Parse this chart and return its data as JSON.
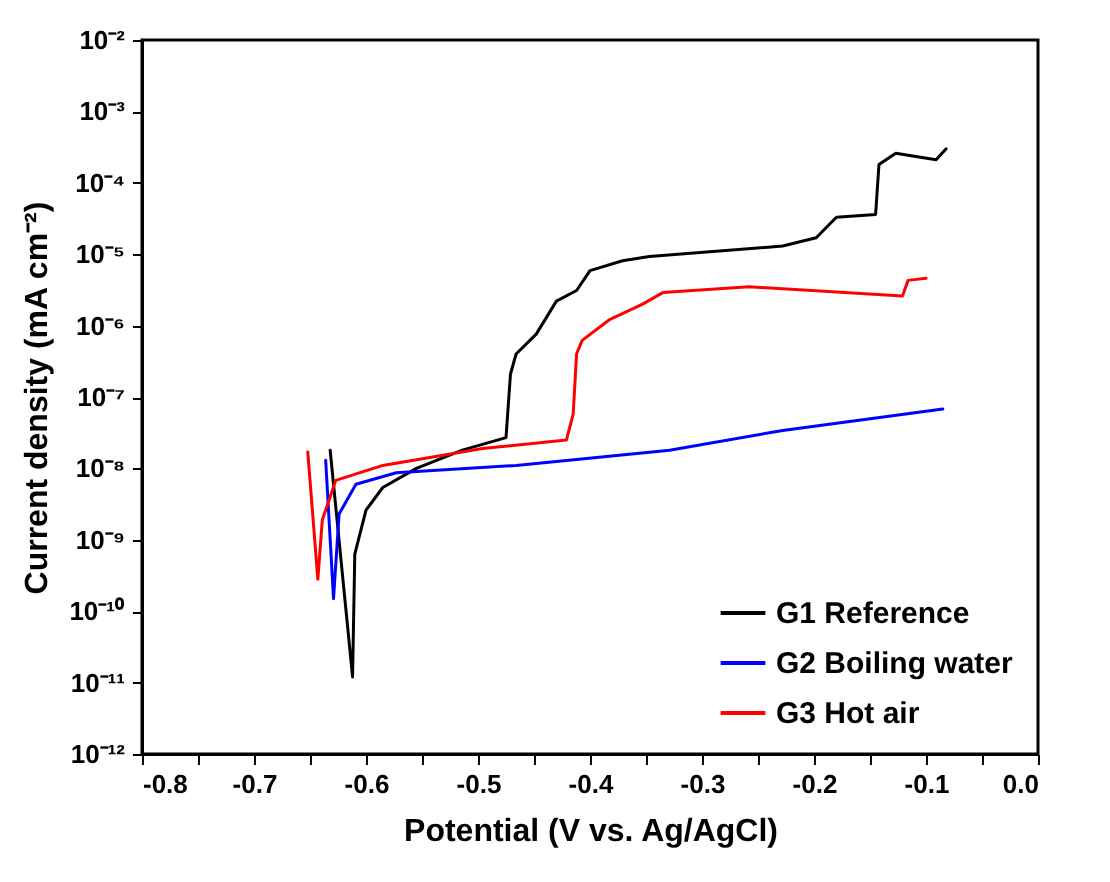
{
  "chart_data": {
    "type": "line",
    "xlabel": "Potential (V vs. Ag/AgCl)",
    "ylabel": "Current density (mA cm⁻²)",
    "log": "y",
    "legend": "bottom right",
    "grid": false,
    "line_style": "solid",
    "marker": "none",
    "xlim": [
      -0.8,
      0.0
    ],
    "xticks": [
      -0.8,
      {
        "value": -0.75,
        "label": null
      },
      -0.7,
      {
        "value": -0.65,
        "label": null
      },
      -0.6,
      {
        "value": -0.55,
        "label": null
      },
      -0.5,
      {
        "value": -0.45,
        "label": null
      },
      -0.4,
      {
        "value": -0.35,
        "label": null
      },
      -0.3,
      {
        "value": -0.25,
        "label": null
      },
      -0.2,
      {
        "value": -0.15,
        "label": null
      },
      -0.1,
      {
        "value": -0.05,
        "label": null
      },
      {
        "value": 0,
        "label": "0.0"
      }
    ],
    "ylim": [
      1e-12,
      0.01
    ],
    "yticks": [
      {
        "value": 1e-12,
        "label": "10⁻¹²"
      },
      {
        "value": 1e-11,
        "label": "10⁻¹¹"
      },
      {
        "value": 1e-10,
        "label": "10⁻¹⁰"
      },
      {
        "value": 1e-09,
        "label": "10⁻⁹"
      },
      {
        "value": 1e-08,
        "label": "10⁻⁸"
      },
      {
        "value": 1e-07,
        "label": "10⁻⁷"
      },
      {
        "value": 1e-06,
        "label": "10⁻⁶"
      },
      {
        "value": 1e-05,
        "label": "10⁻⁵"
      },
      {
        "value": 0.0001,
        "label": "10⁻⁴"
      },
      {
        "value": 0.001,
        "label": "10⁻³"
      },
      {
        "value": 0.01,
        "label": "10⁻²"
      }
    ],
    "series": [
      {
        "name": "G1 Reference",
        "color": "#000000",
        "x": [
          -0.632,
          -0.612,
          -0.61,
          -0.6,
          -0.585,
          -0.555,
          -0.514,
          -0.475,
          -0.471,
          -0.466,
          -0.448,
          -0.43,
          -0.412,
          -0.4,
          -0.371,
          -0.347,
          -0.228,
          -0.198,
          -0.18,
          -0.145,
          -0.142,
          -0.127,
          -0.091,
          -0.082
        ],
        "values": [
          1.8e-08,
          1.2e-11,
          6.3e-10,
          2.6e-09,
          5.4e-09,
          1e-08,
          1.8e-08,
          2.7e-08,
          2.1e-07,
          4e-07,
          7.6e-07,
          2.2e-06,
          3.1e-06,
          5.9e-06,
          8.1e-06,
          9.3e-06,
          1.3e-05,
          1.7e-05,
          3.3e-05,
          3.6e-05,
          0.00018,
          0.00026,
          0.00021,
          0.0003
        ]
      },
      {
        "name": "G2 Boiling water",
        "color": "#0000ff",
        "x": [
          -0.636,
          -0.629,
          -0.624,
          -0.609,
          -0.573,
          -0.466,
          -0.329,
          -0.228,
          -0.085
        ],
        "values": [
          1.3e-08,
          1.5e-10,
          2.3e-09,
          6e-09,
          8.7e-09,
          1.1e-08,
          1.8e-08,
          3.4e-08,
          6.8e-08
        ]
      },
      {
        "name": "G3 Hot air",
        "color": "#ff0000",
        "x": [
          -0.652,
          -0.643,
          -0.639,
          -0.627,
          -0.585,
          -0.496,
          -0.421,
          -0.415,
          -0.412,
          -0.407,
          -0.383,
          -0.353,
          -0.335,
          -0.258,
          -0.121,
          -0.116,
          -0.1
        ],
        "values": [
          1.7e-08,
          2.8e-10,
          1.9e-09,
          6.8e-09,
          1.1e-08,
          1.9e-08,
          2.5e-08,
          5.8e-08,
          4e-07,
          6.2e-07,
          1.2e-06,
          2e-06,
          2.9e-06,
          3.5e-06,
          2.6e-06,
          4.3e-06,
          4.6e-06
        ]
      }
    ]
  }
}
